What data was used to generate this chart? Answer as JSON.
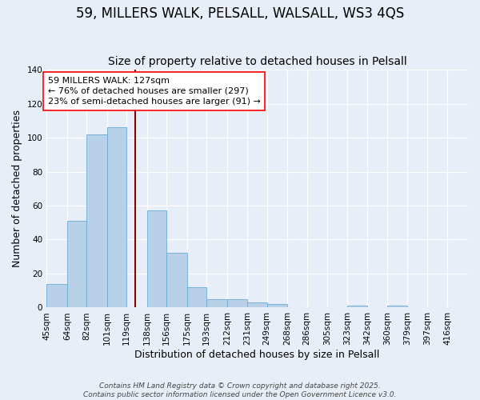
{
  "title": "59, MILLERS WALK, PELSALL, WALSALL, WS3 4QS",
  "subtitle": "Size of property relative to detached houses in Pelsall",
  "xlabel": "Distribution of detached houses by size in Pelsall",
  "ylabel": "Number of detached properties",
  "bar_values": [
    14,
    51,
    102,
    106,
    0,
    57,
    32,
    12,
    5,
    5,
    3,
    2,
    0,
    0,
    0,
    1,
    0,
    1,
    0,
    0,
    0
  ],
  "bin_edges": [
    45,
    64,
    82,
    101,
    119,
    138,
    156,
    175,
    193,
    212,
    231,
    249,
    268,
    286,
    305,
    323,
    342,
    360,
    379,
    397,
    416,
    435
  ],
  "tick_labels": [
    "45sqm",
    "64sqm",
    "82sqm",
    "101sqm",
    "119sqm",
    "138sqm",
    "156sqm",
    "175sqm",
    "193sqm",
    "212sqm",
    "231sqm",
    "249sqm",
    "268sqm",
    "286sqm",
    "305sqm",
    "323sqm",
    "342sqm",
    "360sqm",
    "379sqm",
    "397sqm",
    "416sqm"
  ],
  "ylim": [
    0,
    140
  ],
  "yticks": [
    0,
    20,
    40,
    60,
    80,
    100,
    120,
    140
  ],
  "bar_color": "#b8d0e8",
  "bar_edgecolor": "#6aaad4",
  "background_color": "#e8eef8",
  "red_line_x": 127,
  "annotation_line1": "59 MILLERS WALK: 127sqm",
  "annotation_line2": "← 76% of detached houses are smaller (297)",
  "annotation_line3": "23% of semi-detached houses are larger (91) →",
  "footer_line1": "Contains HM Land Registry data © Crown copyright and database right 2025.",
  "footer_line2": "Contains public sector information licensed under the Open Government Licence v3.0.",
  "title_fontsize": 12,
  "subtitle_fontsize": 10,
  "axis_label_fontsize": 9,
  "tick_fontsize": 7.5,
  "annotation_fontsize": 8,
  "footer_fontsize": 6.5
}
